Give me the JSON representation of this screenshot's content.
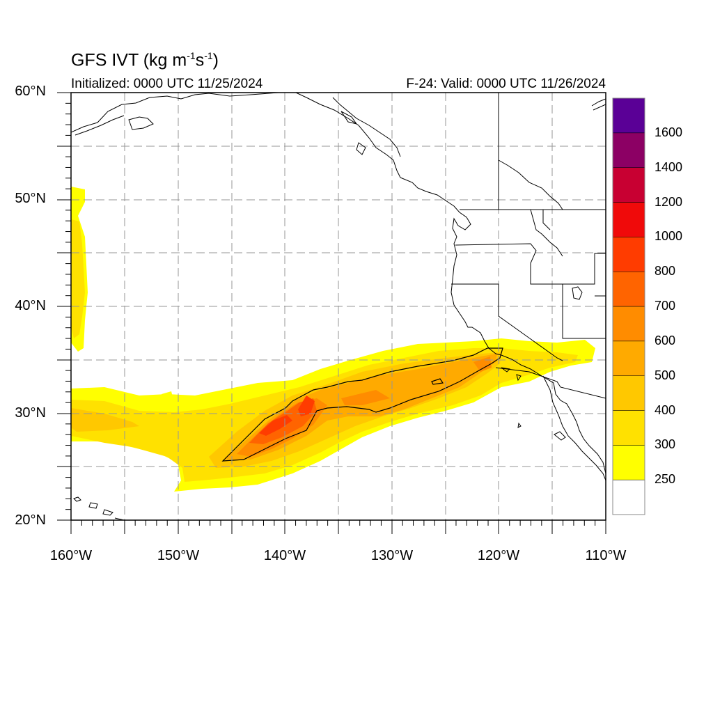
{
  "map": {
    "title": {
      "prefix": "GFS IVT (kg m",
      "exp1": "-1",
      "mid": "s",
      "exp2": "-1",
      "suffix": ")"
    },
    "initialized": "Initialized: 0000 UTC 11/25/2024",
    "valid": "F-24: Valid: 0000 UTC 11/26/2024",
    "lat_labels": [
      "60°N",
      "50°N",
      "40°N",
      "30°N",
      "20°N"
    ],
    "lon_labels": [
      "160°W",
      "150°W",
      "140°W",
      "130°W",
      "120°W",
      "110°W"
    ],
    "extent": {
      "lon_min": -160,
      "lon_max": -110,
      "lat_min": 20,
      "lat_max": 60
    }
  },
  "colorbar": {
    "levels": [
      "1600",
      "1400",
      "1200",
      "1000",
      "800",
      "700",
      "600",
      "500",
      "400",
      "300",
      "250"
    ],
    "colors": [
      "#ffffff",
      "#ffff00",
      "#ffe100",
      "#ffc800",
      "#ffaa00",
      "#ff8c00",
      "#ff6400",
      "#ff3c00",
      "#f00a0a",
      "#c80032",
      "#8c0064",
      "#5a0096"
    ]
  },
  "colors": {
    "contour_line": "#000000",
    "grid_line": "#969696",
    "land_line": "#000000"
  }
}
